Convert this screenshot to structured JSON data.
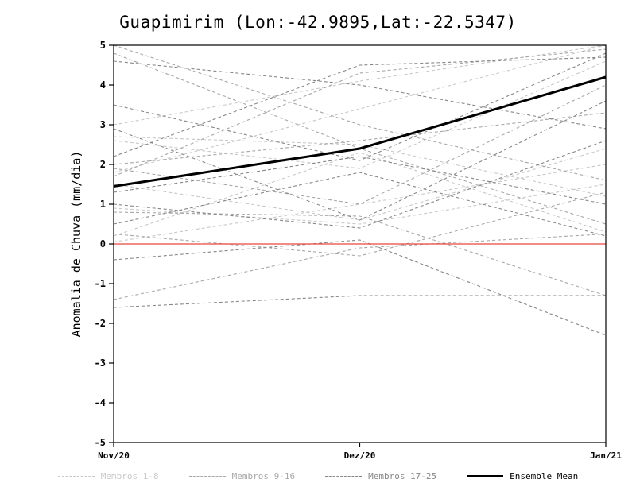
{
  "chart_data": {
    "type": "line",
    "title": "Guapimirim (Lon:-42.9895,Lat:-22.5347)",
    "ylabel": "Anomalia de Chuva (mm/dia)",
    "xlabel": "",
    "categories": [
      "Nov/20",
      "Dez/20",
      "Jan/21"
    ],
    "ylim": [
      -5,
      5
    ],
    "yticks": [
      -5,
      -4,
      -3,
      -2,
      -1,
      0,
      1,
      2,
      3,
      4,
      5
    ],
    "grid": false,
    "legend_position": "bottom",
    "groups": [
      {
        "name": "Membros 1-8",
        "color": "#c9c9c9",
        "series": [
          [
            1.8,
            3.4,
            5.0
          ],
          [
            2.6,
            1.9,
            4.6
          ],
          [
            0.9,
            0.5,
            1.5
          ],
          [
            3.0,
            4.1,
            5.0
          ],
          [
            0.2,
            2.3,
            0.3
          ],
          [
            1.5,
            0.6,
            2.4
          ],
          [
            2.7,
            2.5,
            1.2
          ],
          [
            0.05,
            1.0,
            2.0
          ]
        ]
      },
      {
        "name": "Membros 9-16",
        "color": "#a8a8a8",
        "series": [
          [
            4.8,
            2.4,
            0.5
          ],
          [
            1.7,
            4.3,
            4.9
          ],
          [
            -1.4,
            -0.1,
            0.25
          ],
          [
            0.8,
            0.7,
            -1.3
          ],
          [
            2.0,
            2.6,
            3.3
          ],
          [
            5.0,
            3.0,
            1.6
          ],
          [
            0.25,
            -0.3,
            1.3
          ],
          [
            1.9,
            1.0,
            4.0
          ]
        ]
      },
      {
        "name": "Membros 17-25",
        "color": "#878787",
        "series": [
          [
            -1.6,
            -1.3,
            -1.3
          ],
          [
            -0.4,
            0.1,
            -2.3
          ],
          [
            2.2,
            4.5,
            4.7
          ],
          [
            1.0,
            0.4,
            2.6
          ],
          [
            3.5,
            2.1,
            4.8
          ],
          [
            0.5,
            1.8,
            0.2
          ],
          [
            4.6,
            4.0,
            2.9
          ],
          [
            1.3,
            2.2,
            1.0
          ],
          [
            2.9,
            0.6,
            3.6
          ]
        ]
      }
    ],
    "ensemble_mean": {
      "name": "Ensemble Mean",
      "color": "#000000",
      "values": [
        1.45,
        2.4,
        4.2
      ]
    },
    "zero_line": {
      "value": 0,
      "color": "#e8483c"
    }
  }
}
